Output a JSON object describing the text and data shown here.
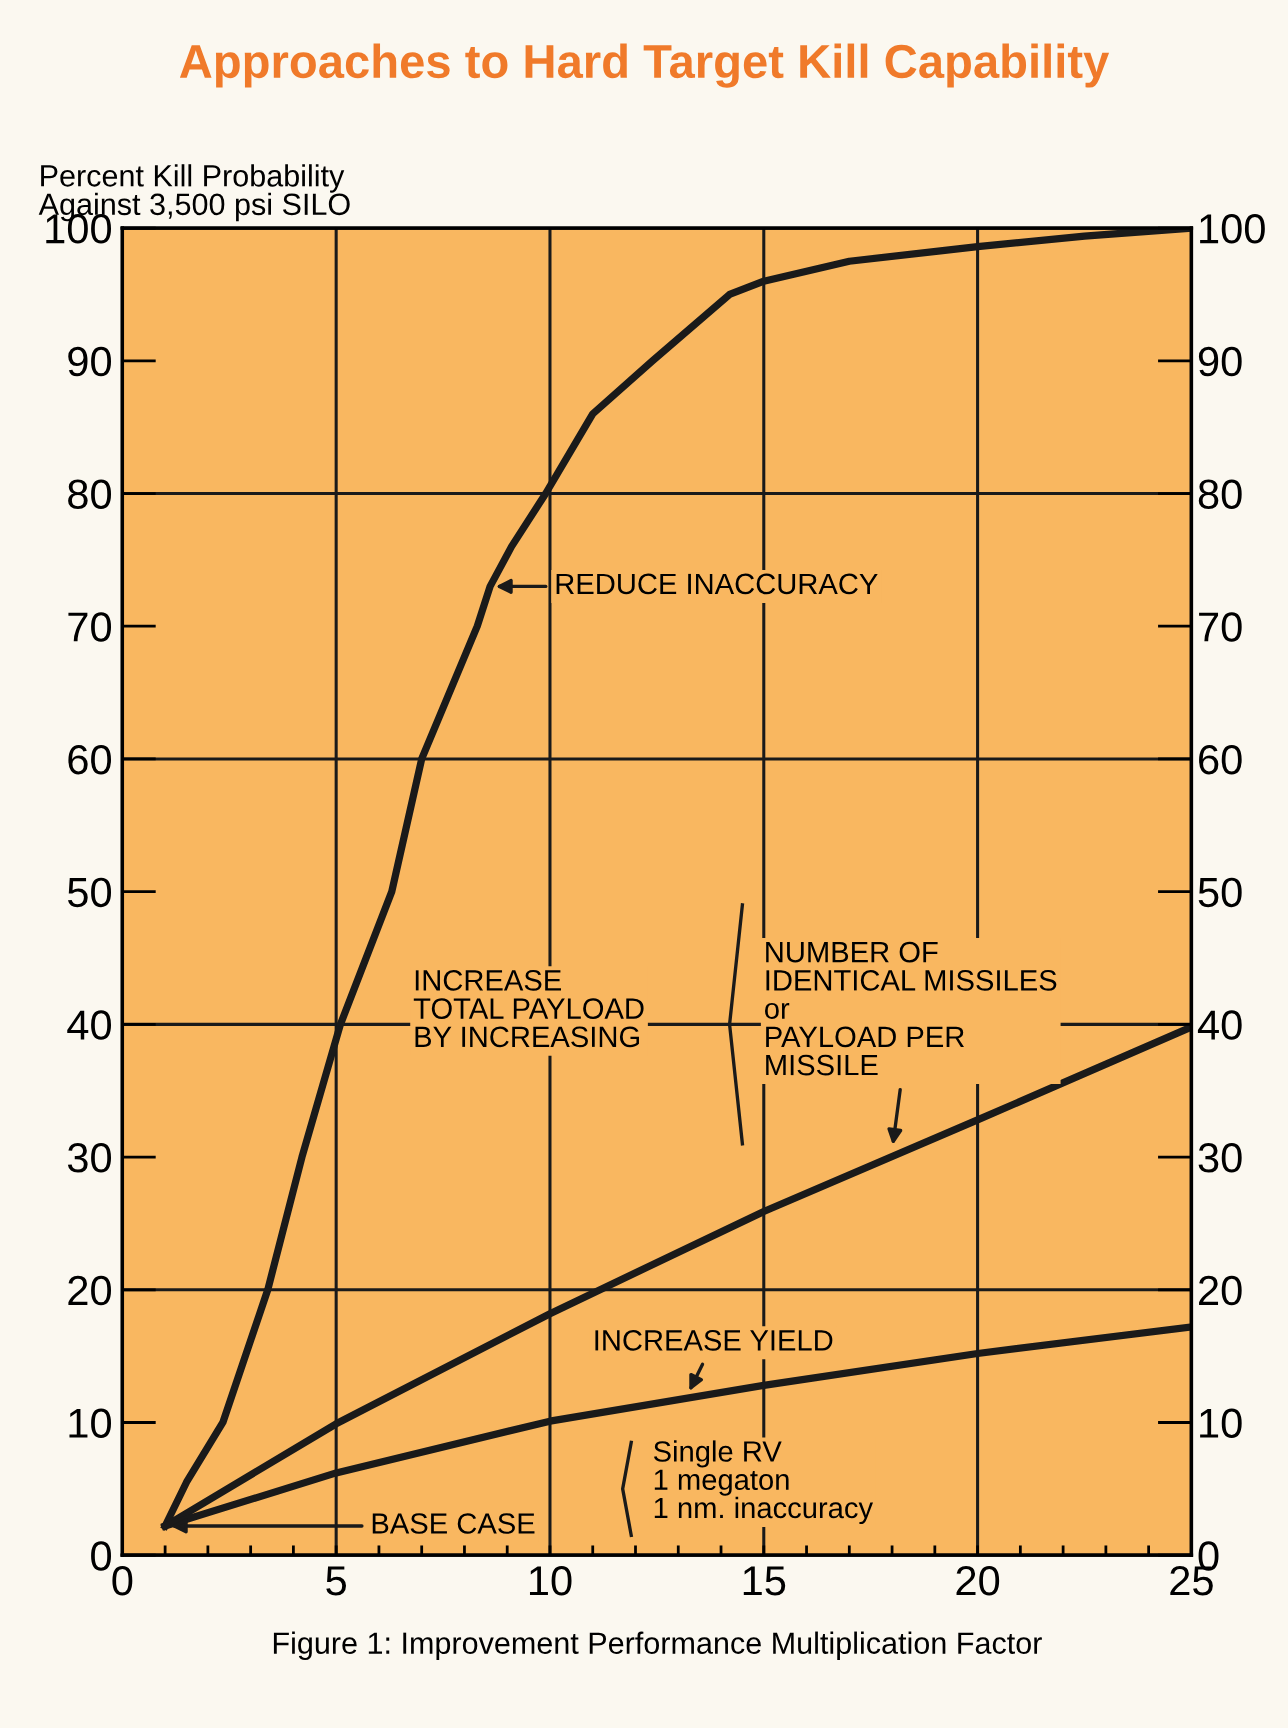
{
  "chart_data": {
    "type": "line",
    "title": "Approaches to Hard Target Kill Capability",
    "ylabel": "Percent Kill Probability\nAgainst 3,500 psi SILO",
    "xlabel": "Figure 1: Improvement Performance Multiplication Factor",
    "series": [
      {
        "color": "#1a1a1a",
        "x": [
          1,
          1.5,
          2.35,
          3.4,
          4.2,
          5.1,
          6.3,
          7.0,
          8.3,
          8.6,
          9.1,
          9.9,
          11,
          12.4,
          14.2,
          15,
          17,
          20,
          22.5,
          25
        ],
        "values": [
          2.2,
          5.5,
          10,
          20,
          30,
          40,
          50,
          60,
          70,
          73,
          76,
          80,
          86,
          90,
          95,
          96,
          97.5,
          98.6,
          99.4,
          100
        ]
      },
      {
        "color": "#1a1a1a",
        "x": [
          1,
          5,
          10,
          15,
          20,
          25
        ],
        "values": [
          2.2,
          9.9,
          18.2,
          25.9,
          32.8,
          39.8
        ]
      },
      {
        "color": "#1a1a1a",
        "x": [
          1,
          5,
          10,
          15,
          20,
          25
        ],
        "values": [
          2.2,
          6.2,
          10.1,
          12.8,
          15.2,
          17.2
        ]
      }
    ],
    "xlim": [
      0,
      25
    ],
    "ylim": [
      0,
      100
    ],
    "y2lim": [
      0,
      100
    ],
    "xticks": [
      0,
      {
        "value": 1,
        "label": null
      },
      {
        "value": 2,
        "label": null
      },
      {
        "value": 3,
        "label": null
      },
      {
        "value": 4,
        "label": null
      },
      5,
      {
        "value": 6,
        "label": null
      },
      {
        "value": 7,
        "label": null
      },
      {
        "value": 8,
        "label": null
      },
      {
        "value": 9,
        "label": null
      },
      10,
      {
        "value": 11,
        "label": null
      },
      {
        "value": 12,
        "label": null
      },
      {
        "value": 13,
        "label": null
      },
      {
        "value": 14,
        "label": null
      },
      15,
      {
        "value": 16,
        "label": null
      },
      {
        "value": 17,
        "label": null
      },
      {
        "value": 18,
        "label": null
      },
      {
        "value": 19,
        "label": null
      },
      20,
      {
        "value": 21,
        "label": null
      },
      {
        "value": 22,
        "label": null
      },
      {
        "value": 23,
        "label": null
      },
      {
        "value": 24,
        "label": null
      },
      25
    ],
    "yticks": [
      0,
      10,
      20,
      30,
      40,
      50,
      60,
      70,
      80,
      90,
      100
    ],
    "y2ticks": [
      0,
      10,
      20,
      30,
      40,
      50,
      60,
      70,
      80,
      90,
      100
    ],
    "ref_lines": [
      {
        "axis": "x",
        "value": 5,
        "color": "#1a1a1a"
      },
      {
        "axis": "x",
        "value": 10,
        "color": "#1a1a1a"
      },
      {
        "axis": "x",
        "value": 15,
        "color": "#1a1a1a"
      },
      {
        "axis": "x",
        "value": 20,
        "color": "#1a1a1a"
      },
      {
        "axis": "y",
        "value": 20,
        "color": "#1a1a1a"
      },
      {
        "axis": "y",
        "value": 40,
        "color": "#1a1a1a"
      },
      {
        "axis": "y",
        "value": 60,
        "color": "#1a1a1a"
      },
      {
        "axis": "y",
        "value": 80,
        "color": "#1a1a1a"
      }
    ],
    "annotations": [
      {
        "text": "REDUCE INACCURACY",
        "x": 8.6,
        "y": 73
      },
      {
        "text": "INCREASE YIELD",
        "x": 13.2,
        "y": 12
      },
      {
        "text": "BASE CASE",
        "x": 1,
        "y": 2.2
      },
      "INCREASE\nTOTAL PAYLOAD\nBY INCREASING",
      {
        "text": "NUMBER OF\nIDENTICAL MISSILES\nor\nPAYLOAD PER\nMISSILE",
        "x": 18,
        "y": 30.5
      },
      "Single RV\n1 megaton\n1 nm. inaccuracy"
    ],
    "grid": false,
    "legend": false,
    "marker": "none",
    "line_style": "solid"
  }
}
